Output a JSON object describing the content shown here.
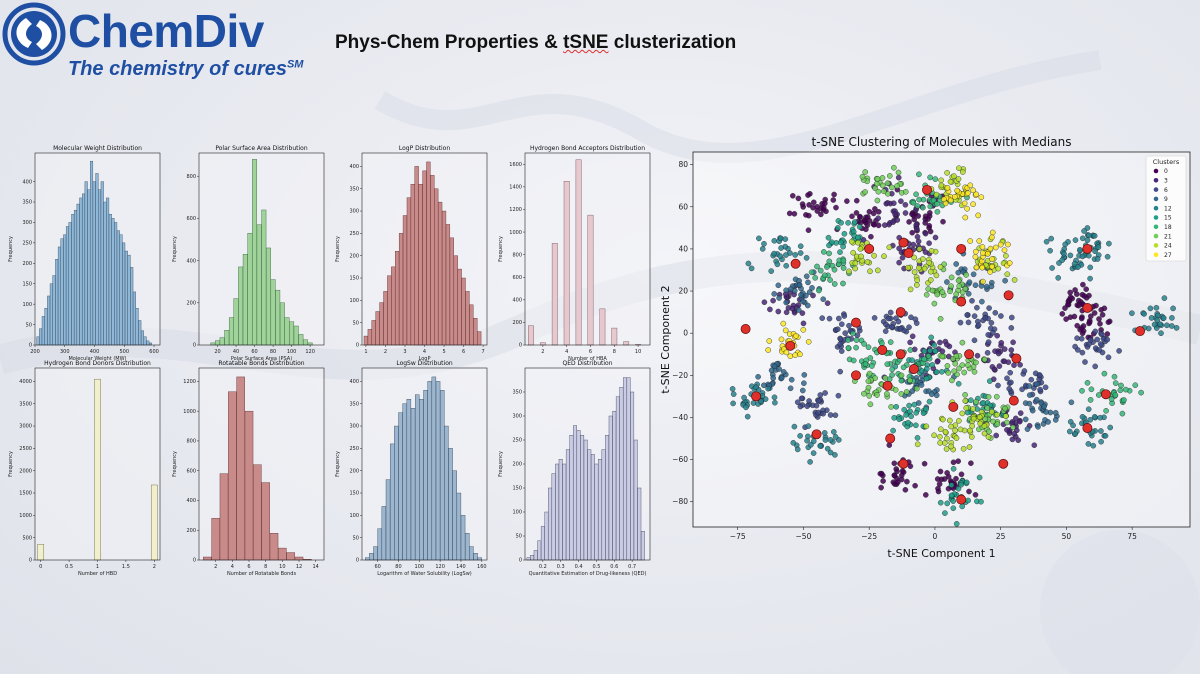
{
  "brand": {
    "name": "ChemDiv",
    "tagline": "The chemistry of cures",
    "tagline_mark": "SM",
    "color": "#1f4fa3"
  },
  "page": {
    "title_prefix": "Phys-Chem Properties & ",
    "title_tsne": "tSNE",
    "title_suffix": " clusterization"
  },
  "chart_data": [
    {
      "type": "bar",
      "title": "Molecular Weight Distribution",
      "xlabel": "Molecular Weight (MW)",
      "ylabel": "Frequency",
      "color": "#8fb8d8",
      "edge": "#34495e",
      "xlim": [
        200,
        620
      ],
      "ylim": [
        0,
        470
      ],
      "xticks": [
        200,
        300,
        400,
        500,
        600
      ],
      "yticks": [
        0,
        50,
        100,
        150,
        200,
        250,
        300,
        350,
        400
      ],
      "x": [
        210,
        219,
        228,
        237,
        246,
        255,
        264,
        273,
        282,
        291,
        300,
        309,
        318,
        327,
        336,
        345,
        354,
        363,
        372,
        381,
        390,
        399,
        408,
        417,
        426,
        435,
        444,
        453,
        462,
        471,
        480,
        489,
        498,
        507,
        516,
        525,
        534,
        543,
        552,
        561,
        570,
        579,
        588
      ],
      "values": [
        20,
        40,
        70,
        90,
        120,
        150,
        170,
        210,
        240,
        260,
        270,
        290,
        300,
        320,
        330,
        345,
        360,
        370,
        400,
        380,
        450,
        400,
        420,
        380,
        400,
        350,
        360,
        320,
        310,
        300,
        280,
        270,
        250,
        230,
        220,
        190,
        130,
        90,
        60,
        35,
        20,
        10,
        5
      ]
    },
    {
      "type": "bar",
      "title": "Polar Surface Area Distribution",
      "xlabel": "Polar Surface Area (PSA)",
      "ylabel": "Frequency",
      "color": "#9fd39a",
      "edge": "#355e3b",
      "xlim": [
        0,
        135
      ],
      "ylim": [
        0,
        910
      ],
      "xticks": [
        20,
        40,
        60,
        80,
        100,
        120
      ],
      "yticks": [
        0,
        200,
        400,
        600,
        800
      ],
      "x": [
        15,
        20,
        25,
        30,
        35,
        40,
        45,
        50,
        55,
        60,
        65,
        70,
        75,
        80,
        85,
        90,
        95,
        100,
        105,
        110,
        115,
        120
      ],
      "values": [
        10,
        20,
        35,
        70,
        130,
        220,
        370,
        430,
        530,
        880,
        570,
        640,
        460,
        310,
        260,
        200,
        130,
        110,
        90,
        50,
        25,
        10
      ]
    },
    {
      "type": "bar",
      "title": "LogP Distribution",
      "xlabel": "LogP",
      "ylabel": "Frequency",
      "color": "#c98a8a",
      "edge": "#5a2b2b",
      "xlim": [
        0.8,
        7.2
      ],
      "ylim": [
        0,
        430
      ],
      "xticks": [
        1,
        2,
        3,
        4,
        5,
        6,
        7
      ],
      "yticks": [
        0,
        50,
        100,
        150,
        200,
        250,
        300,
        350,
        400
      ],
      "x": [
        1.0,
        1.2,
        1.4,
        1.6,
        1.8,
        2.0,
        2.2,
        2.4,
        2.6,
        2.8,
        3.0,
        3.2,
        3.4,
        3.6,
        3.8,
        4.0,
        4.2,
        4.4,
        4.6,
        4.8,
        5.0,
        5.2,
        5.4,
        5.6,
        5.8,
        6.0,
        6.2,
        6.4,
        6.6,
        6.8
      ],
      "values": [
        20,
        35,
        55,
        75,
        95,
        120,
        155,
        175,
        210,
        250,
        290,
        330,
        360,
        400,
        360,
        390,
        410,
        380,
        350,
        320,
        300,
        270,
        240,
        200,
        170,
        150,
        120,
        90,
        60,
        30
      ]
    },
    {
      "type": "bar",
      "title": "Hydrogen Bond Acceptors Distribution",
      "xlabel": "Number of HBA",
      "ylabel": "Frequency",
      "color": "#e8c8cf",
      "edge": "#6a4a52",
      "xlim": [
        0.5,
        11
      ],
      "ylim": [
        0,
        1700
      ],
      "xticks": [
        2,
        4,
        6,
        8,
        10
      ],
      "yticks": [
        0,
        200,
        400,
        600,
        800,
        1000,
        1200,
        1400,
        1600
      ],
      "x": [
        1,
        2,
        3,
        4,
        5,
        6,
        7,
        8,
        9,
        10
      ],
      "values": [
        170,
        20,
        900,
        1450,
        1640,
        1150,
        320,
        150,
        30,
        5
      ]
    },
    {
      "type": "bar",
      "title": "Hydrogen Bond Donors Distribution",
      "xlabel": "Number of HBD",
      "ylabel": "Frequency",
      "color": "#f2f0cc",
      "edge": "#5e5c3a",
      "xlim": [
        -0.1,
        2.1
      ],
      "ylim": [
        0,
        4300
      ],
      "xticks": [
        0.0,
        0.5,
        1.0,
        1.5,
        2.0
      ],
      "yticks": [
        0,
        500,
        1000,
        1500,
        2000,
        2500,
        3000,
        3500,
        4000
      ],
      "x": [
        0,
        1,
        2
      ],
      "values": [
        350,
        4050,
        1680
      ]
    },
    {
      "type": "bar",
      "title": "Rotatable Bonds Distribution",
      "xlabel": "Number of Rotatable Bonds",
      "ylabel": "Frequency",
      "color": "#c98a8a",
      "edge": "#5a2b2b",
      "xlim": [
        0,
        15
      ],
      "ylim": [
        0,
        1290
      ],
      "xticks": [
        2,
        4,
        6,
        8,
        10,
        12,
        14
      ],
      "yticks": [
        0,
        200,
        400,
        600,
        800,
        1000,
        1200
      ],
      "x": [
        1,
        2,
        3,
        4,
        5,
        6,
        7,
        8,
        9,
        10,
        11,
        12,
        13
      ],
      "values": [
        20,
        280,
        580,
        1130,
        1230,
        1000,
        640,
        520,
        180,
        80,
        50,
        20,
        5
      ]
    },
    {
      "type": "bar",
      "title": "LogSw Distribution",
      "xlabel": "Logarithm of Water Solubility (LogSw)",
      "ylabel": "Frequency",
      "color": "#9cb6cf",
      "edge": "#2f4257",
      "xlim": [
        45,
        165
      ],
      "ylim": [
        0,
        430
      ],
      "xticks": [
        60,
        80,
        100,
        120,
        140,
        160
      ],
      "yticks": [
        0,
        50,
        100,
        150,
        200,
        250,
        300,
        350,
        400
      ],
      "x": [
        50,
        54,
        58,
        62,
        66,
        70,
        74,
        78,
        82,
        86,
        90,
        94,
        98,
        102,
        106,
        110,
        114,
        118,
        122,
        126,
        130,
        134,
        138,
        142,
        146,
        150,
        154,
        158
      ],
      "values": [
        5,
        15,
        30,
        70,
        120,
        180,
        260,
        300,
        330,
        350,
        360,
        340,
        370,
        360,
        380,
        400,
        410,
        400,
        380,
        300,
        250,
        200,
        150,
        100,
        60,
        30,
        15,
        5
      ]
    },
    {
      "type": "bar",
      "title": "QED Distribution",
      "xlabel": "Quantitative Estimation of Drug-likeness (QED)",
      "ylabel": "Frequency",
      "color": "#c9cce4",
      "edge": "#3e4058",
      "xlim": [
        0.1,
        0.8
      ],
      "ylim": [
        0,
        400
      ],
      "xticks": [
        0.2,
        0.3,
        0.4,
        0.5,
        0.6,
        0.7
      ],
      "yticks": [
        0,
        50,
        100,
        150,
        200,
        250,
        300,
        350
      ],
      "x": [
        0.12,
        0.14,
        0.16,
        0.18,
        0.2,
        0.22,
        0.24,
        0.26,
        0.28,
        0.3,
        0.32,
        0.34,
        0.36,
        0.38,
        0.4,
        0.42,
        0.44,
        0.46,
        0.48,
        0.5,
        0.52,
        0.54,
        0.56,
        0.58,
        0.6,
        0.62,
        0.64,
        0.66,
        0.68,
        0.7,
        0.72,
        0.74,
        0.76
      ],
      "values": [
        5,
        10,
        20,
        40,
        70,
        100,
        150,
        180,
        200,
        210,
        200,
        230,
        260,
        280,
        270,
        260,
        250,
        230,
        220,
        200,
        210,
        230,
        260,
        300,
        310,
        340,
        360,
        380,
        380,
        350,
        250,
        150,
        60
      ]
    },
    {
      "type": "scatter",
      "title": "t-SNE Clustering of Molecules with Medians",
      "xlabel": "t-SNE Component 1",
      "ylabel": "t-SNE Component 2",
      "xlim": [
        -92,
        97
      ],
      "ylim": [
        -92,
        86
      ],
      "xticks": [
        -75,
        -50,
        -25,
        0,
        25,
        50,
        75
      ],
      "yticks": [
        -80,
        -60,
        -40,
        -20,
        0,
        20,
        40,
        60,
        80
      ],
      "legend": {
        "title": "Clusters",
        "position": "top-right",
        "labels": [
          "0",
          "3",
          "6",
          "9",
          "12",
          "15",
          "18",
          "21",
          "24",
          "27"
        ]
      },
      "median_color": "#e0302a",
      "medians": [
        [
          -53,
          33
        ],
        [
          -72,
          2
        ],
        [
          -55,
          -6
        ],
        [
          -30,
          -20
        ],
        [
          -68,
          -30
        ],
        [
          -45,
          -48
        ],
        [
          -30,
          5
        ],
        [
          -18,
          -25
        ],
        [
          -13,
          -10
        ],
        [
          -8,
          -17
        ],
        [
          -17,
          -50
        ],
        [
          -12,
          -62
        ],
        [
          -13,
          10
        ],
        [
          -12,
          43
        ],
        [
          -25,
          40
        ],
        [
          -20,
          -8
        ],
        [
          -3,
          68
        ],
        [
          -10,
          38
        ],
        [
          10,
          40
        ],
        [
          10,
          15
        ],
        [
          28,
          18
        ],
        [
          13,
          -10
        ],
        [
          31,
          -12
        ],
        [
          7,
          -35
        ],
        [
          30,
          -32
        ],
        [
          26,
          -62
        ],
        [
          10,
          -79
        ],
        [
          58,
          40
        ],
        [
          58,
          12
        ],
        [
          78,
          1
        ],
        [
          65,
          -29
        ],
        [
          58,
          -45
        ]
      ],
      "clusters": [
        {
          "id": 0,
          "color": "#440154",
          "centers": [
            [
              -25,
              55
            ],
            [
              -5,
              55
            ],
            [
              -15,
              -68
            ],
            [
              5,
              -70
            ],
            [
              55,
              15
            ],
            [
              60,
              5
            ],
            [
              -45,
              60
            ]
          ]
        },
        {
          "id": 3,
          "color": "#482677",
          "centers": [
            [
              -15,
              60
            ],
            [
              -8,
              40
            ],
            [
              0,
              -10
            ],
            [
              25,
              -10
            ],
            [
              -55,
              15
            ],
            [
              30,
              -45
            ]
          ]
        },
        {
          "id": 6,
          "color": "#3e4a89",
          "centers": [
            [
              -35,
              0
            ],
            [
              -15,
              5
            ],
            [
              20,
              5
            ],
            [
              -45,
              -35
            ],
            [
              35,
              -25
            ],
            [
              60,
              -5
            ]
          ]
        },
        {
          "id": 9,
          "color": "#31688e",
          "centers": [
            [
              -60,
              -20
            ],
            [
              -50,
              20
            ],
            [
              -5,
              -25
            ],
            [
              15,
              25
            ],
            [
              40,
              -35
            ]
          ]
        },
        {
          "id": 12,
          "color": "#26828e",
          "centers": [
            [
              -70,
              -30
            ],
            [
              -60,
              38
            ],
            [
              -45,
              -52
            ],
            [
              57,
              -45
            ],
            [
              52,
              38
            ],
            [
              85,
              5
            ],
            [
              60,
              42
            ]
          ]
        },
        {
          "id": 15,
          "color": "#1f9e89",
          "centers": [
            [
              -5,
              -15
            ],
            [
              -10,
              -40
            ],
            [
              18,
              -35
            ],
            [
              10,
              -78
            ],
            [
              -35,
              45
            ]
          ]
        },
        {
          "id": 18,
          "color": "#35b779",
          "centers": [
            [
              -12,
              -15
            ],
            [
              -25,
              -10
            ],
            [
              0,
              65
            ],
            [
              -40,
              30
            ],
            [
              67,
              -28
            ]
          ]
        },
        {
          "id": 21,
          "color": "#6ece58",
          "centers": [
            [
              5,
              20
            ],
            [
              10,
              -15
            ],
            [
              -20,
              -25
            ],
            [
              22,
              -40
            ],
            [
              -20,
              72
            ]
          ]
        },
        {
          "id": 24,
          "color": "#b5de2b",
          "centers": [
            [
              15,
              -40
            ],
            [
              -28,
              38
            ],
            [
              22,
              35
            ],
            [
              5,
              -50
            ],
            [
              -5,
              30
            ],
            [
              8,
              70
            ]
          ]
        },
        {
          "id": 27,
          "color": "#fde725",
          "centers": [
            [
              -55,
              -5
            ],
            [
              22,
              38
            ],
            [
              10,
              65
            ]
          ]
        }
      ]
    }
  ]
}
